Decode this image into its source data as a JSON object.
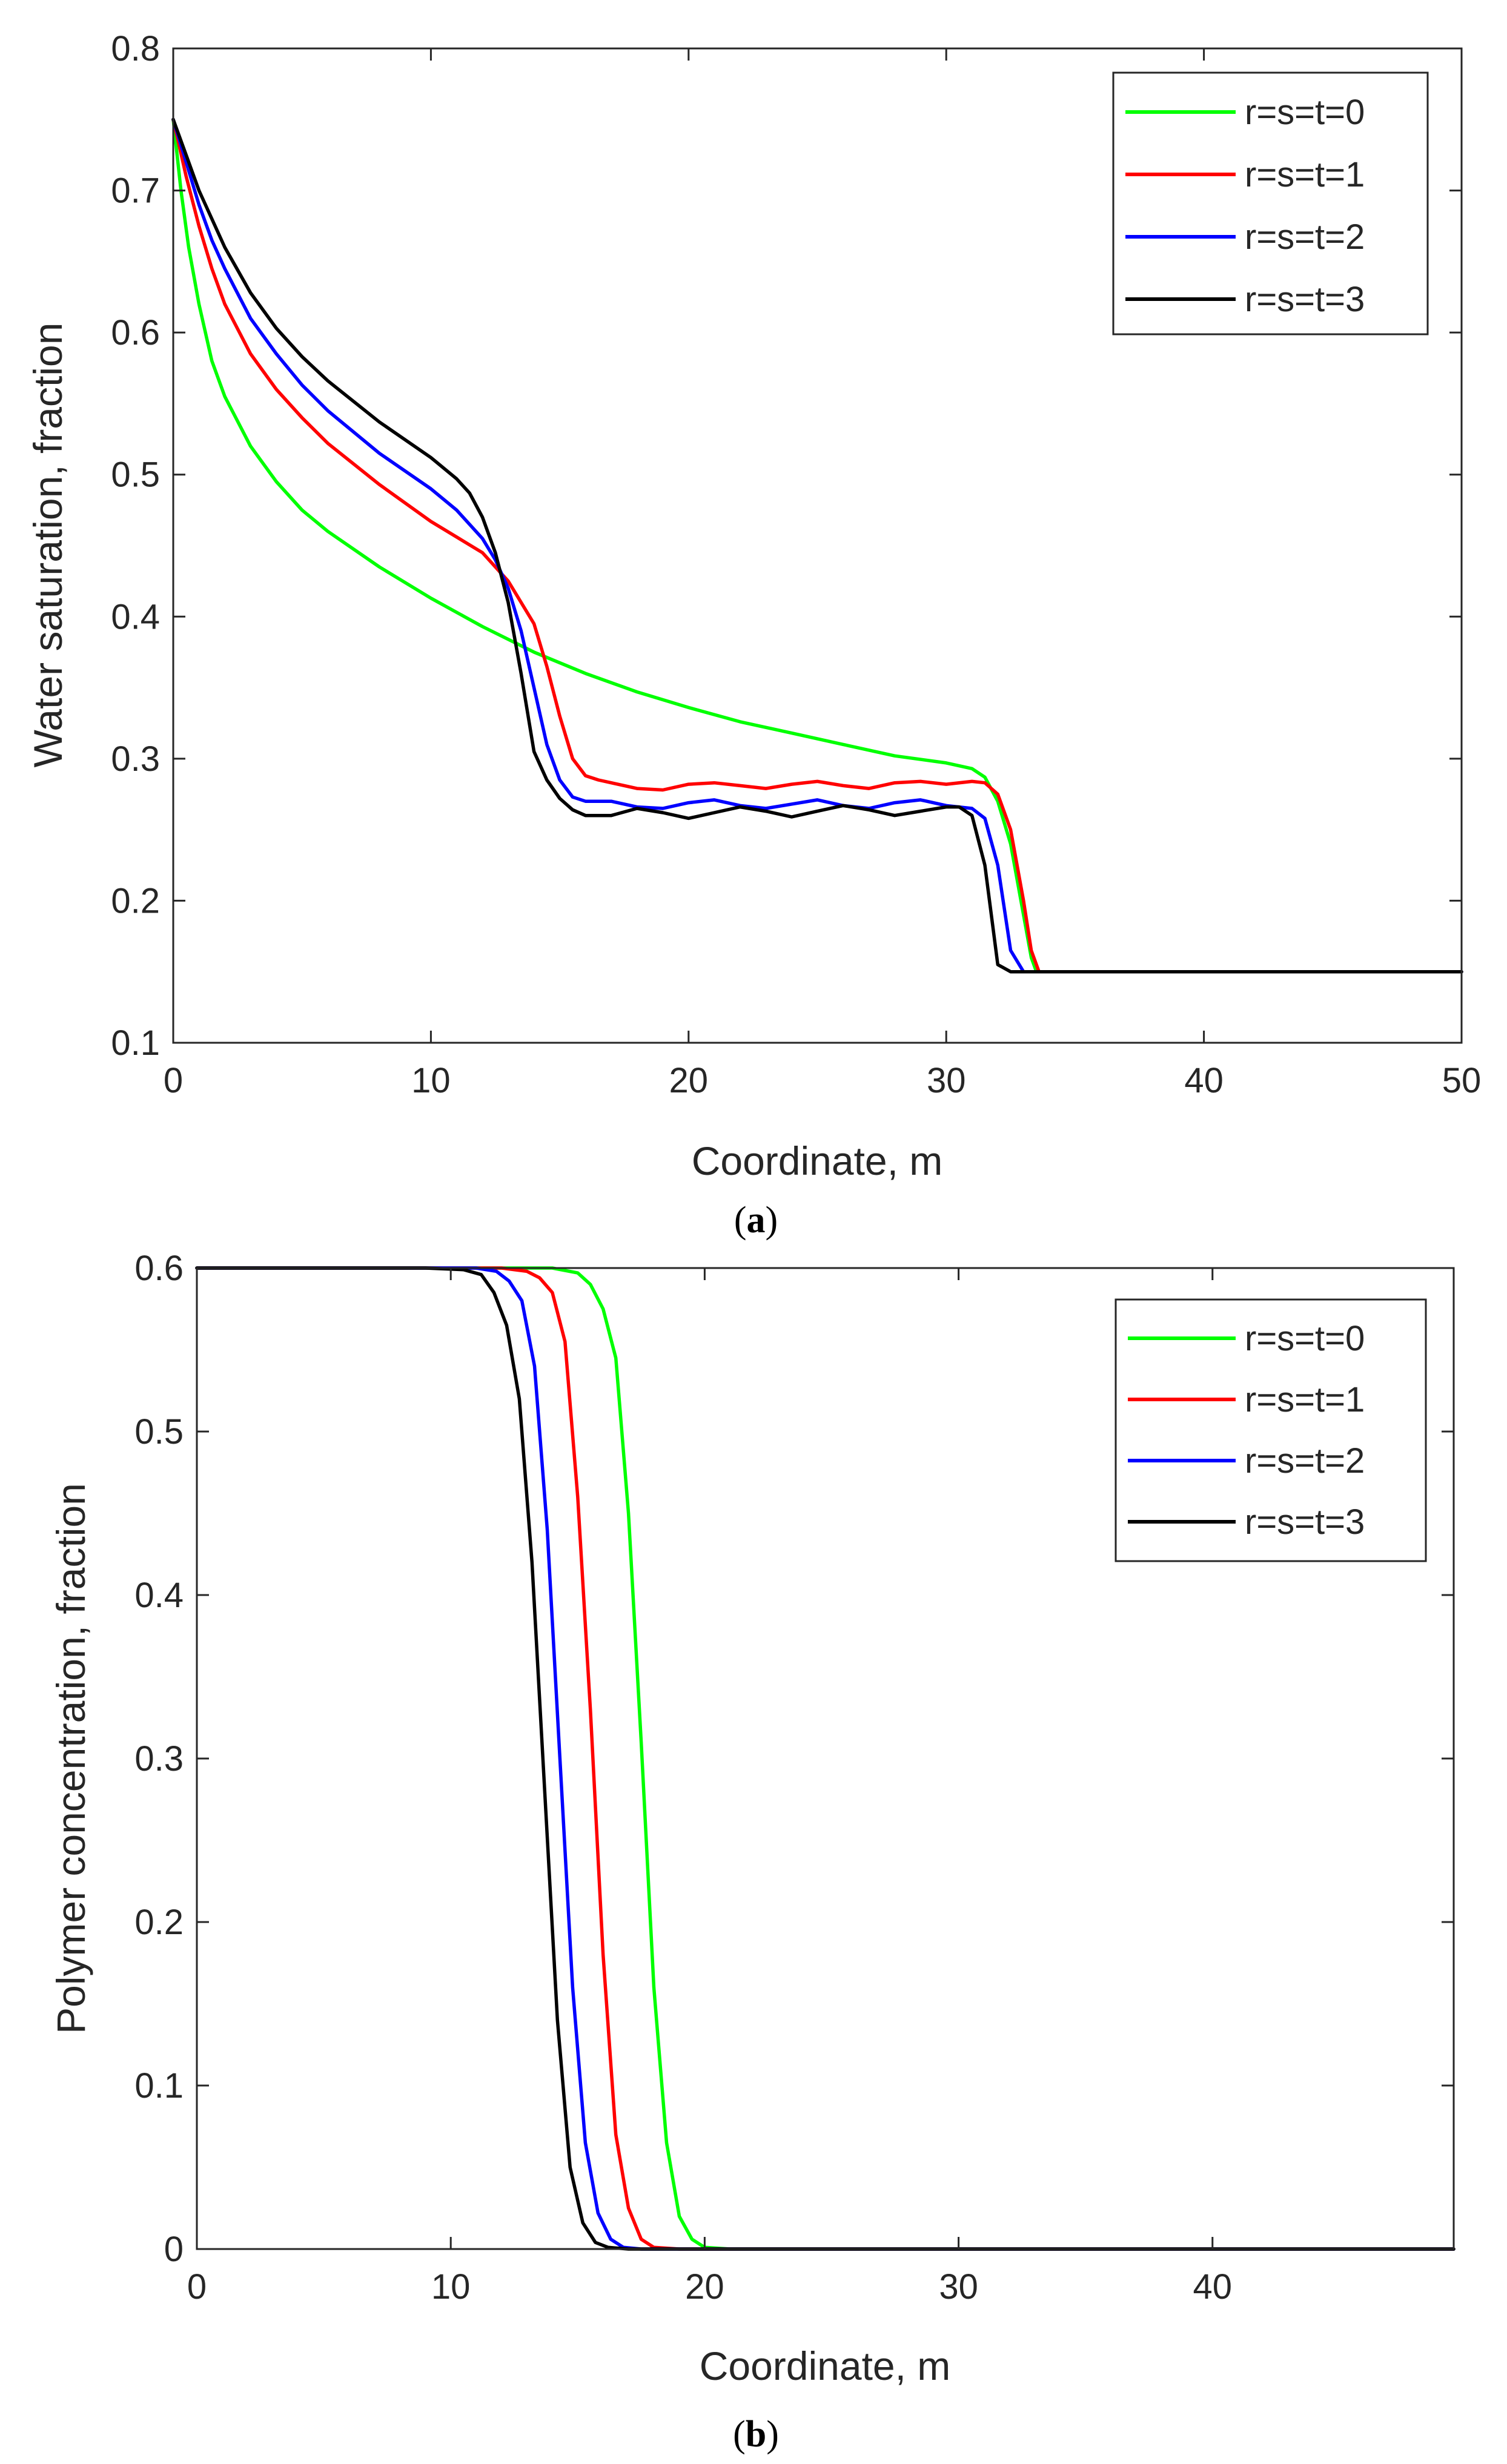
{
  "chart_data": [
    {
      "type": "line",
      "panel_label": {
        "open": "(",
        "letter": "a",
        "close": ")"
      },
      "xlabel": "Coordinate, m",
      "ylabel": "Water saturation, fraction",
      "xlim": [
        0,
        50
      ],
      "ylim": [
        0.1,
        0.8
      ],
      "xticks": [
        0,
        10,
        20,
        30,
        40,
        50
      ],
      "xtick_labels": [
        "0",
        "10",
        "20",
        "30",
        "40",
        "50"
      ],
      "yticks": [
        0.1,
        0.2,
        0.3,
        0.4,
        0.5,
        0.6,
        0.7,
        0.8
      ],
      "ytick_labels": [
        "0.1",
        "0.2",
        "0.3",
        "0.4",
        "0.5",
        "0.6",
        "0.7",
        "0.8"
      ],
      "grid": false,
      "legend_position": "top-right",
      "series": [
        {
          "name": "r=s=t=0",
          "color": "#00ff00",
          "x": [
            0,
            0.3,
            0.6,
            1,
            1.5,
            2,
            3,
            4,
            5,
            6,
            8,
            10,
            12,
            14,
            16,
            18,
            20,
            22,
            24,
            26,
            28,
            30,
            31,
            31.5,
            32,
            32.5,
            33,
            33.3,
            33.5,
            40,
            50
          ],
          "y": [
            0.75,
            0.7,
            0.66,
            0.62,
            0.58,
            0.555,
            0.52,
            0.495,
            0.475,
            0.46,
            0.435,
            0.413,
            0.393,
            0.375,
            0.36,
            0.347,
            0.336,
            0.326,
            0.318,
            0.31,
            0.302,
            0.297,
            0.293,
            0.287,
            0.27,
            0.24,
            0.19,
            0.16,
            0.15,
            0.15,
            0.15
          ]
        },
        {
          "name": "r=s=t=1",
          "color": "#ff0000",
          "x": [
            0,
            0.5,
            1,
            1.5,
            2,
            3,
            4,
            5,
            6,
            8,
            10,
            12,
            13,
            14,
            14.5,
            15,
            15.5,
            16,
            16.5,
            17,
            18,
            19,
            20,
            21,
            22,
            23,
            24,
            25,
            26,
            27,
            28,
            29,
            30,
            31,
            31.5,
            32,
            32.5,
            33,
            33.3,
            33.6,
            40,
            50
          ],
          "y": [
            0.75,
            0.71,
            0.675,
            0.645,
            0.62,
            0.585,
            0.56,
            0.54,
            0.522,
            0.493,
            0.467,
            0.445,
            0.425,
            0.395,
            0.365,
            0.33,
            0.3,
            0.288,
            0.285,
            0.283,
            0.279,
            0.278,
            0.282,
            0.283,
            0.281,
            0.279,
            0.282,
            0.284,
            0.281,
            0.279,
            0.283,
            0.284,
            0.282,
            0.284,
            0.283,
            0.275,
            0.25,
            0.2,
            0.165,
            0.15,
            0.15,
            0.15
          ]
        },
        {
          "name": "r=s=t=2",
          "color": "#0000ff",
          "x": [
            0,
            0.5,
            1,
            1.5,
            2,
            3,
            4,
            5,
            6,
            8,
            10,
            11,
            12,
            12.5,
            13,
            13.5,
            14,
            14.5,
            15,
            15.5,
            16,
            17,
            18,
            19,
            20,
            21,
            22,
            23,
            24,
            25,
            26,
            27,
            28,
            29,
            30,
            31,
            31.5,
            32,
            32.5,
            33,
            40,
            50
          ],
          "y": [
            0.75,
            0.72,
            0.69,
            0.665,
            0.645,
            0.61,
            0.585,
            0.563,
            0.545,
            0.515,
            0.49,
            0.475,
            0.455,
            0.44,
            0.42,
            0.39,
            0.35,
            0.31,
            0.285,
            0.273,
            0.27,
            0.27,
            0.266,
            0.265,
            0.269,
            0.271,
            0.267,
            0.265,
            0.268,
            0.271,
            0.267,
            0.265,
            0.269,
            0.271,
            0.267,
            0.265,
            0.258,
            0.225,
            0.165,
            0.15,
            0.15,
            0.15
          ]
        },
        {
          "name": "r=s=t=3",
          "color": "#000000",
          "x": [
            0,
            0.5,
            1,
            1.5,
            2,
            3,
            4,
            5,
            6,
            8,
            10,
            11,
            11.5,
            12,
            12.5,
            13,
            13.5,
            14,
            14.5,
            15,
            15.5,
            16,
            17,
            18,
            19,
            20,
            21,
            22,
            23,
            24,
            25,
            26,
            27,
            28,
            29,
            30,
            30.5,
            31,
            31.5,
            32,
            32.5,
            40,
            50
          ],
          "y": [
            0.75,
            0.725,
            0.7,
            0.68,
            0.66,
            0.628,
            0.603,
            0.583,
            0.566,
            0.537,
            0.512,
            0.497,
            0.487,
            0.47,
            0.445,
            0.41,
            0.36,
            0.305,
            0.285,
            0.272,
            0.264,
            0.26,
            0.26,
            0.265,
            0.262,
            0.258,
            0.262,
            0.266,
            0.263,
            0.259,
            0.263,
            0.267,
            0.264,
            0.26,
            0.263,
            0.266,
            0.266,
            0.26,
            0.225,
            0.155,
            0.15,
            0.15,
            0.15
          ]
        }
      ]
    },
    {
      "type": "line",
      "panel_label": {
        "open": "(",
        "letter": "b",
        "close": ")"
      },
      "xlabel": "Coordinate, m",
      "ylabel": "Polymer concentration, fraction",
      "xlim": [
        0,
        49.5
      ],
      "ylim": [
        0,
        0.6
      ],
      "xticks": [
        0,
        10,
        20,
        30,
        40
      ],
      "xtick_labels": [
        "0",
        "10",
        "20",
        "30",
        "40"
      ],
      "yticks": [
        0,
        0.1,
        0.2,
        0.3,
        0.4,
        0.5,
        0.6
      ],
      "ytick_labels": [
        "0",
        "0.1",
        "0.2",
        "0.3",
        "0.4",
        "0.5",
        "0.6"
      ],
      "grid": false,
      "legend_position": "top-right",
      "series": [
        {
          "name": "r=s=t=0",
          "color": "#00ff00",
          "x": [
            0,
            10,
            12,
            14,
            15,
            15.5,
            16,
            16.5,
            17,
            17.5,
            18,
            18.5,
            19,
            19.5,
            20,
            21,
            30,
            40,
            49.5
          ],
          "y": [
            0.6,
            0.6,
            0.6,
            0.6,
            0.597,
            0.59,
            0.575,
            0.545,
            0.45,
            0.31,
            0.16,
            0.065,
            0.02,
            0.006,
            0.001,
            0,
            0,
            0,
            0
          ]
        },
        {
          "name": "r=s=t=1",
          "color": "#ff0000",
          "x": [
            0,
            10,
            12,
            13,
            13.5,
            14,
            14.5,
            15,
            15.5,
            16,
            16.5,
            17,
            17.5,
            18,
            19,
            30,
            40,
            49.5
          ],
          "y": [
            0.6,
            0.6,
            0.6,
            0.598,
            0.594,
            0.585,
            0.555,
            0.46,
            0.33,
            0.18,
            0.07,
            0.025,
            0.006,
            0.001,
            0,
            0,
            0,
            0
          ]
        },
        {
          "name": "r=s=t=2",
          "color": "#0000ff",
          "x": [
            0,
            9,
            11,
            11.8,
            12.3,
            12.8,
            13.3,
            13.8,
            14.3,
            14.8,
            15.3,
            15.8,
            16.3,
            16.8,
            17.5,
            30,
            40,
            49.5
          ],
          "y": [
            0.6,
            0.6,
            0.6,
            0.598,
            0.592,
            0.58,
            0.54,
            0.44,
            0.3,
            0.16,
            0.065,
            0.022,
            0.006,
            0.001,
            0,
            0,
            0,
            0
          ]
        },
        {
          "name": "r=s=t=3",
          "color": "#000000",
          "x": [
            0,
            9,
            10.5,
            11.2,
            11.7,
            12.2,
            12.7,
            13.2,
            13.7,
            14.2,
            14.7,
            15.2,
            15.7,
            16.2,
            17,
            30,
            40,
            49.5
          ],
          "y": [
            0.6,
            0.6,
            0.599,
            0.596,
            0.585,
            0.565,
            0.52,
            0.42,
            0.28,
            0.14,
            0.05,
            0.016,
            0.004,
            0.001,
            0,
            0,
            0,
            0
          ]
        }
      ]
    }
  ]
}
